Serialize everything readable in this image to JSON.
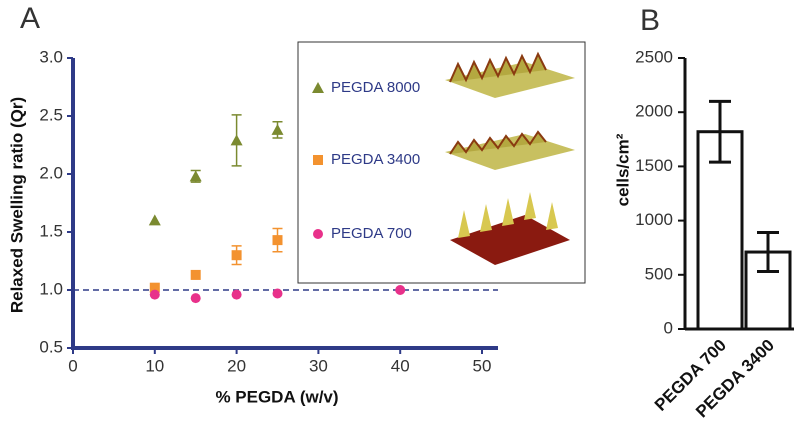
{
  "chart_data": [
    {
      "type": "scatter",
      "panel_label": "A",
      "x_label": "% PEGDA (w/v)",
      "y_label": "Relaxed Swelling ratio (Qr)",
      "xlim": [
        0,
        50
      ],
      "xticks": [
        0,
        10,
        20,
        30,
        40,
        50
      ],
      "ylim": [
        0.5,
        3.0
      ],
      "yticks": [
        0.5,
        {
          "value": 1,
          "label": "1.0"
        },
        1.5,
        {
          "value": 2,
          "label": "2.0"
        },
        2.5,
        {
          "value": 3,
          "label": "3.0"
        }
      ],
      "reference_line": 1,
      "series": [
        {
          "name": "PEGDA 8000",
          "color": "#7b8a30",
          "marker": "triangle",
          "x": [
            10,
            15,
            20,
            25
          ],
          "values": [
            1.6,
            1.98,
            2.29,
            2.38
          ],
          "errors": [
            null,
            0.05,
            0.22,
            0.07
          ]
        },
        {
          "name": "PEGDA 3400",
          "color": "#f3922f",
          "marker": "square",
          "x": [
            10,
            15,
            20,
            25
          ],
          "values": [
            1.02,
            1.13,
            1.3,
            1.43
          ],
          "errors": [
            null,
            null,
            0.08,
            0.1
          ]
        },
        {
          "name": "PEGDA 700",
          "color": "#e8318a",
          "marker": "circle",
          "x": [
            10,
            15,
            20,
            25,
            40
          ],
          "values": [
            0.96,
            0.93,
            0.96,
            0.97,
            1.0
          ],
          "errors": [
            null,
            null,
            null,
            null,
            null
          ]
        }
      ]
    },
    {
      "type": "bar",
      "panel_label": "B",
      "y_label": "cells/cm²",
      "categories": [
        "PEGDA 700",
        "PEGDA 3400"
      ],
      "values": [
        1820,
        710
      ],
      "errors": [
        280,
        180
      ],
      "ylim": [
        0,
        2500
      ],
      "yticks": [
        0,
        500,
        1000,
        1500,
        2000,
        2500
      ]
    }
  ]
}
